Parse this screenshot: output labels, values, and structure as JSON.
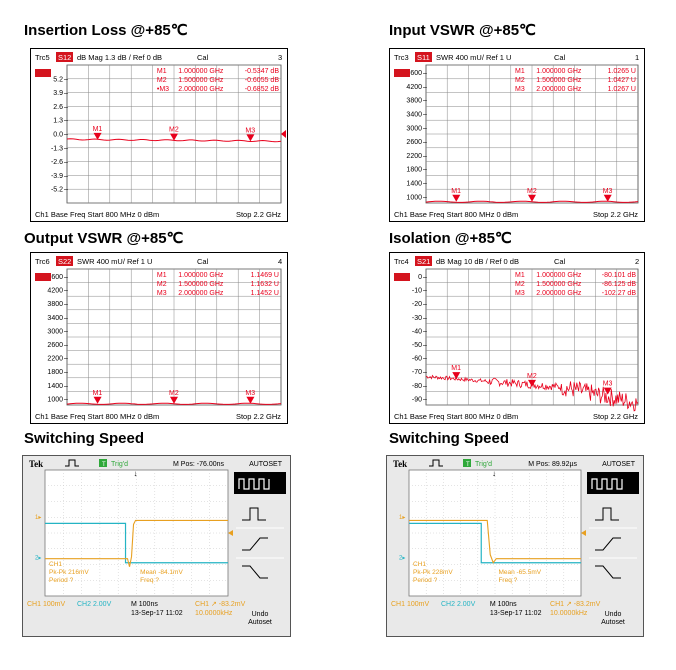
{
  "panels": [
    {
      "title": "Insertion Loss @+85℃",
      "trace": "Trc5",
      "param": "S12",
      "format": "dB Mag",
      "scale": "1.3 dB /",
      "ref": "Ref 0 dB",
      "cal": "Cal",
      "channel_no": "3",
      "ticks": [
        "5.2",
        "3.9",
        "2.6",
        "1.3",
        "0.0",
        "-1.3",
        "-2.6",
        "-3.9",
        "-5.2"
      ],
      "markers": [
        {
          "label": "M1",
          "freq": "1.000000",
          "unit": "GHz",
          "value": "-0.5347",
          "vunit": "dB"
        },
        {
          "label": "M2",
          "freq": "1.500000",
          "unit": "GHz",
          "value": "-0.6055",
          "vunit": "dB"
        },
        {
          "label": "•M3",
          "freq": "2.000000",
          "unit": "GHz",
          "value": "-0.6852",
          "vunit": "dB"
        }
      ],
      "footer": {
        "left": "Ch1  Base Freq  Start  800 MHz  0 dBm",
        "right": "Stop  2.2 GHz"
      }
    },
    {
      "title": "Input VSWR @+85℃",
      "trace": "Trc3",
      "param": "S11",
      "format": "SWR",
      "scale": "400 mU/",
      "ref": "Ref 1 U",
      "cal": "Cal",
      "channel_no": "1",
      "ticks": [
        "4600",
        "4200",
        "3800",
        "3400",
        "3000",
        "2600",
        "2200",
        "1800",
        "1400",
        "1000"
      ],
      "markers": [
        {
          "label": "M1",
          "freq": "1.000000",
          "unit": "GHz",
          "value": "1.0265",
          "vunit": "U"
        },
        {
          "label": "M2",
          "freq": "1.500000",
          "unit": "GHz",
          "value": "1.0427",
          "vunit": "U"
        },
        {
          "label": "M3",
          "freq": "2.000000",
          "unit": "GHz",
          "value": "1.0267",
          "vunit": "U"
        }
      ],
      "footer": {
        "left": "Ch1  Base Freq  Start  800 MHz  0 dBm",
        "right": "Stop  2.2 GHz"
      }
    },
    {
      "title": "Output VSWR @+85℃",
      "trace": "Trc6",
      "param": "S22",
      "format": "SWR",
      "scale": "400 mU/",
      "ref": "Ref 1 U",
      "cal": "Cal",
      "channel_no": "4",
      "ticks": [
        "4600",
        "4200",
        "3800",
        "3400",
        "3000",
        "2600",
        "2200",
        "1800",
        "1400",
        "1000"
      ],
      "markers": [
        {
          "label": "M1",
          "freq": "1.000000",
          "unit": "GHz",
          "value": "1.1469",
          "vunit": "U"
        },
        {
          "label": "M2",
          "freq": "1.500000",
          "unit": "GHz",
          "value": "1.1632",
          "vunit": "U"
        },
        {
          "label": "M3",
          "freq": "2.000000",
          "unit": "GHz",
          "value": "1.1452",
          "vunit": "U"
        }
      ],
      "footer": {
        "left": "Ch1  Base Freq  Start  800 MHz  0 dBm",
        "right": "Stop  2.2 GHz"
      }
    },
    {
      "title": "Isolation @+85℃",
      "trace": "Trc4",
      "param": "S21",
      "format": "dB Mag",
      "scale": "10 dB /",
      "ref": "Ref 0 dB",
      "cal": "Cal",
      "channel_no": "2",
      "ticks": [
        "0",
        "-10",
        "-20",
        "-30",
        "-40",
        "-50",
        "-60",
        "-70",
        "-80",
        "-90"
      ],
      "markers": [
        {
          "label": "M1",
          "freq": "1.000000",
          "unit": "GHz",
          "value": "-80.101",
          "vunit": "dB"
        },
        {
          "label": "M2",
          "freq": "1.500000",
          "unit": "GHz",
          "value": "-86.125",
          "vunit": "dB"
        },
        {
          "label": "M3",
          "freq": "2.000000",
          "unit": "GHz",
          "value": "-102.27",
          "vunit": "dB"
        }
      ],
      "footer": {
        "left": "Ch1  Base Freq  Start  800 MHz  0 dBm",
        "right": "Stop  2.2 GHz"
      }
    }
  ],
  "switching": [
    {
      "title": "Switching Speed",
      "brand": "Tek",
      "trig": "Trig'd",
      "mpos": "M Pos: -76.00ns",
      "menu": "AUTOSET",
      "undo": "Undo",
      "autoset": "Autoset",
      "readout": {
        "ch": "CH1",
        "pkpk": "Pk-Pk 216mV",
        "period": "Period ?",
        "mean": "Mean -84.1mV",
        "freq": "Freq ?"
      },
      "status": {
        "ch1": "CH1  100mV",
        "ch2": "CH2  2.00V",
        "time": "M 100ns",
        "trig": "CH1 ↗ -83.2mV",
        "date": "13-Sep-17 11:02",
        "freqv": "10.0000kHz"
      }
    },
    {
      "title": "Switching Speed",
      "brand": "Tek",
      "trig": "Trig'd",
      "mpos": "M Pos: 89.92µs",
      "menu": "AUTOSET",
      "undo": "Undo",
      "autoset": "Autoset",
      "readout": {
        "ch": "CH1",
        "pkpk": "Pk-Pk 228mV",
        "period": "Period ?",
        "mean": "Mean -65.5mV",
        "freq": "Freq ?"
      },
      "status": {
        "ch1": "CH1  100mV",
        "ch2": "CH2  2.00V",
        "time": "M 100ns",
        "trig": "CH1 ↗ -83.2mV",
        "date": "13-Sep-17 11:02",
        "freqv": "10.0000kHz"
      }
    }
  ],
  "colors": {
    "trace": "#e8001c",
    "tag": "#d4141e",
    "grid": "#888888",
    "ch1": "#e8a020",
    "ch2": "#24b4c4"
  },
  "chart_data": [
    {
      "type": "line",
      "title": "Insertion Loss @+85℃",
      "ylabel": "dB",
      "ylim": [
        -6.5,
        6.5
      ],
      "xlim_ghz": [
        0.8,
        2.2
      ],
      "series": [
        {
          "name": "S12",
          "x": [
            0.8,
            1.0,
            1.5,
            2.0,
            2.2
          ],
          "y": [
            -0.5,
            -0.5347,
            -0.6055,
            -0.6852,
            -0.7
          ]
        }
      ]
    },
    {
      "type": "line",
      "title": "Input VSWR @+85℃",
      "ylim": [
        1000,
        5000
      ],
      "xlim_ghz": [
        0.8,
        2.2
      ],
      "series": [
        {
          "name": "S11",
          "x": [
            1.0,
            1.5,
            2.0
          ],
          "y": [
            1.0265,
            1.0427,
            1.0267
          ]
        }
      ]
    },
    {
      "type": "line",
      "title": "Output VSWR @+85℃",
      "ylim": [
        1000,
        5000
      ],
      "xlim_ghz": [
        0.8,
        2.2
      ],
      "series": [
        {
          "name": "S22",
          "x": [
            1.0,
            1.5,
            2.0
          ],
          "y": [
            1.1469,
            1.1632,
            1.1452
          ]
        }
      ]
    },
    {
      "type": "line",
      "title": "Isolation @+85℃",
      "ylabel": "dB",
      "ylim": [
        -100,
        10
      ],
      "xlim_ghz": [
        0.8,
        2.2
      ],
      "series": [
        {
          "name": "S21",
          "x": [
            0.8,
            1.0,
            1.5,
            2.0,
            2.2
          ],
          "y": [
            -78,
            -80.101,
            -86.125,
            -102.27,
            -95
          ]
        }
      ]
    }
  ]
}
